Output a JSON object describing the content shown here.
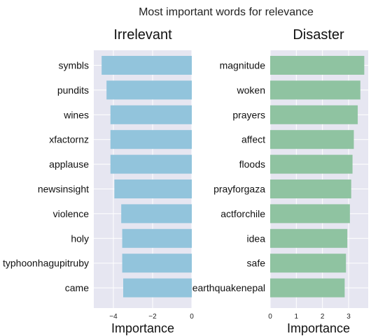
{
  "suptitle": "Most important words for relevance",
  "chart_data": [
    {
      "type": "bar",
      "orientation": "horizontal",
      "title": "Irrelevant",
      "xlabel": "Importance",
      "xlim": [
        -5,
        0
      ],
      "xticks": [
        -4,
        -2,
        0
      ],
      "xtick_labels": [
        "−4",
        "−2",
        "0"
      ],
      "color": "#92c4dc",
      "grid": true,
      "categories": [
        "symbls",
        "pundits",
        "wines",
        "xfactornz",
        "applause",
        "newsinsight",
        "violence",
        "holy",
        "typhoonhagupitruby",
        "came"
      ],
      "values": [
        -4.6,
        -4.35,
        -4.15,
        -4.15,
        -4.15,
        -3.95,
        -3.6,
        -3.55,
        -3.55,
        -3.5
      ]
    },
    {
      "type": "bar",
      "orientation": "horizontal",
      "title": "Disaster",
      "xlabel": "Importance",
      "xlim": [
        0,
        3.75
      ],
      "xticks": [
        0,
        1,
        2,
        3
      ],
      "xtick_labels": [
        "0",
        "1",
        "2",
        "3"
      ],
      "color": "#8fc3a1",
      "grid": true,
      "categories": [
        "magnitude",
        "woken",
        "prayers",
        "affect",
        "floods",
        "prayforgaza",
        "actforchile",
        "idea",
        "safe",
        "earthquakenepal"
      ],
      "values": [
        3.6,
        3.45,
        3.35,
        3.2,
        3.15,
        3.1,
        3.05,
        2.95,
        2.9,
        2.85
      ]
    }
  ]
}
